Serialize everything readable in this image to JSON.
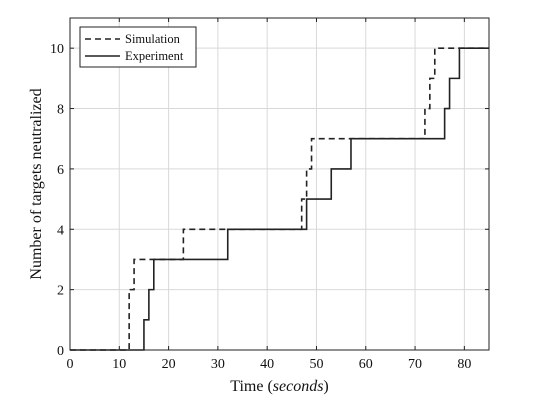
{
  "chart_data": {
    "type": "line",
    "title": "",
    "xlabel_prefix": "Time (",
    "xlabel_italic": "seconds",
    "xlabel_suffix": ")",
    "ylabel": "Number of targets neutralized",
    "xlim": [
      0,
      85
    ],
    "ylim": [
      0,
      11
    ],
    "xticks": [
      0,
      10,
      20,
      30,
      40,
      50,
      60,
      70,
      80
    ],
    "yticks": [
      0,
      2,
      4,
      6,
      8,
      10
    ],
    "grid": true,
    "legend_position": "top-left",
    "series": [
      {
        "name": "Simulation",
        "style": "dashed",
        "color": "#222222",
        "step": true,
        "x": [
          0,
          12,
          13,
          23,
          47,
          48,
          49,
          72,
          73,
          74,
          75,
          85
        ],
        "y": [
          0,
          2,
          3,
          4,
          5,
          6,
          7,
          8,
          9,
          10,
          10,
          10
        ]
      },
      {
        "name": "Experiment",
        "style": "solid",
        "color": "#222222",
        "step": true,
        "x": [
          0,
          15,
          16,
          17,
          32,
          48,
          53,
          57,
          74,
          76,
          77,
          79,
          85
        ],
        "y": [
          0,
          1,
          2,
          3,
          4,
          5,
          6,
          7,
          7,
          8,
          9,
          10,
          10
        ]
      }
    ]
  }
}
